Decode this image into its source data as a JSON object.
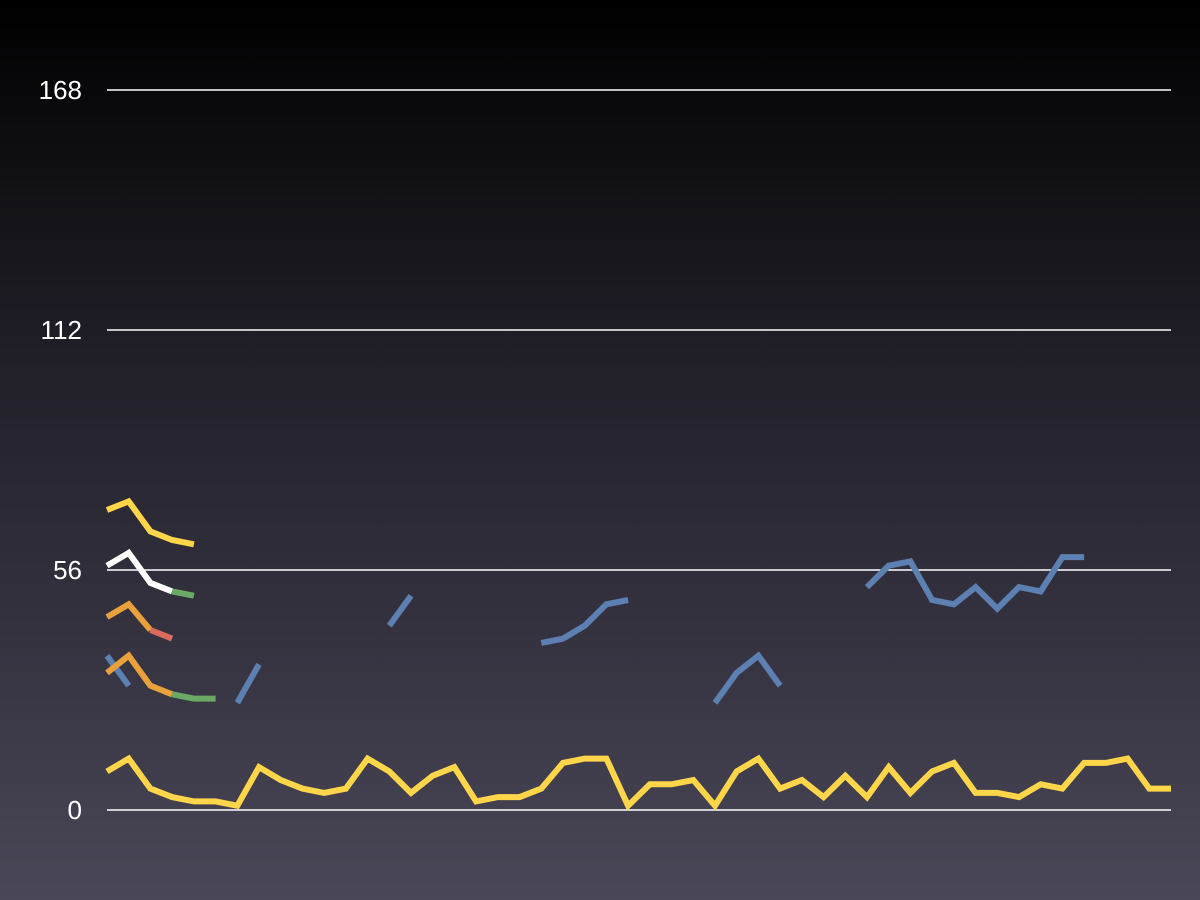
{
  "chart_data": {
    "type": "line",
    "title": "",
    "xlabel": "",
    "ylabel": "",
    "ylim": [
      0,
      168
    ],
    "yticks": [
      0,
      56,
      112,
      168
    ],
    "grid": true,
    "legend": "none",
    "points": 50,
    "palette": [
      "#ffd54a",
      "#5d80b2",
      "#e9a13b",
      "#6aaa64",
      "#d86b5e",
      "#8b64b0",
      "#ffffff"
    ],
    "series": [
      {
        "color": "#ffd54a",
        "values": [
          9,
          12,
          5,
          3,
          2,
          2,
          1,
          10,
          7,
          5,
          4,
          5,
          12,
          9,
          4,
          8,
          10,
          2,
          3,
          3,
          5,
          11,
          12,
          12,
          1,
          6,
          6,
          7,
          1,
          9,
          12,
          5,
          7,
          3,
          8,
          3,
          10,
          4,
          9,
          11,
          4,
          4,
          3,
          6,
          5,
          11,
          11,
          12,
          5,
          5
        ]
      },
      {
        "color": "#5d80b2",
        "segments": [
          {
            "start": 0,
            "values": [
              36,
              29
            ]
          },
          {
            "start": 6,
            "values": [
              25,
              34
            ]
          },
          {
            "start": 13,
            "values": [
              43,
              50
            ]
          },
          {
            "start": 20,
            "values": [
              39,
              40,
              43,
              48,
              49
            ]
          },
          {
            "start": 28,
            "values": [
              25,
              32,
              36,
              29
            ]
          },
          {
            "start": 35,
            "values": [
              52,
              57,
              58,
              49,
              48,
              52,
              47,
              52,
              51,
              59,
              59
            ]
          }
        ]
      },
      {
        "color": "#e9a13b",
        "values": [
          32,
          36,
          29,
          27
        ]
      },
      {
        "color": "#6aaa64",
        "values": [
          null,
          null,
          null,
          27,
          26,
          26
        ]
      },
      {
        "color": "#ffd54a",
        "values": [
          70,
          72,
          65,
          63,
          62
        ]
      },
      {
        "color": "#ffffff",
        "values": [
          57,
          60,
          53,
          51
        ]
      },
      {
        "color": "#6aaa64",
        "values": [
          null,
          null,
          null,
          51,
          50
        ]
      },
      {
        "color": "#e9a13b",
        "values": [
          45,
          48,
          42
        ]
      },
      {
        "color": "#d86b5e",
        "values": [
          null,
          null,
          42,
          40
        ]
      }
    ]
  }
}
